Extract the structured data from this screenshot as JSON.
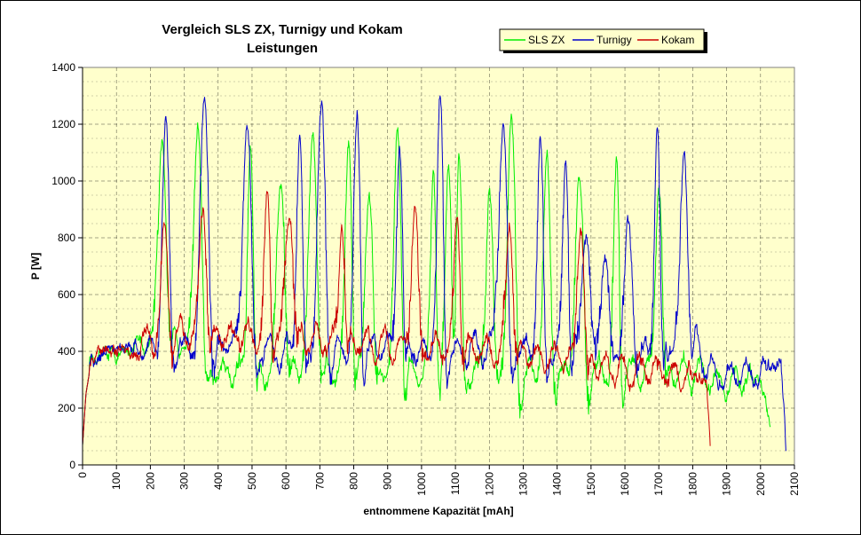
{
  "chart_data": {
    "type": "line",
    "title": "Vergleich SLS ZX, Turnigy und Kokam",
    "subtitle": "Leistungen",
    "xlabel": "entnommene Kapazität [mAh]",
    "ylabel": "P [W]",
    "xlim": [
      0,
      2100
    ],
    "ylim": [
      0,
      1400
    ],
    "xticks": [
      0,
      100,
      200,
      300,
      400,
      500,
      600,
      700,
      800,
      900,
      1000,
      1100,
      1200,
      1300,
      1400,
      1500,
      1600,
      1700,
      1800,
      1900,
      2000,
      2100
    ],
    "yticks": [
      0,
      200,
      400,
      600,
      800,
      1000,
      1200,
      1400
    ],
    "grid": true,
    "plot_background": "#ffffcc",
    "legend_position": "top-right",
    "series": [
      {
        "name": "SLS ZX",
        "color": "#00ee00",
        "base": [
          [
            0,
            70
          ],
          [
            10,
            250
          ],
          [
            25,
            360
          ],
          [
            60,
            400
          ],
          [
            100,
            380
          ],
          [
            150,
            410
          ],
          [
            190,
            440
          ],
          [
            260,
            450
          ],
          [
            400,
            320
          ],
          [
            600,
            340
          ],
          [
            800,
            340
          ],
          [
            1000,
            330
          ],
          [
            1200,
            320
          ],
          [
            1400,
            320
          ],
          [
            1600,
            330
          ],
          [
            1780,
            330
          ],
          [
            1850,
            300
          ],
          [
            1900,
            280
          ],
          [
            1950,
            300
          ],
          [
            2000,
            290
          ],
          [
            2020,
            200
          ],
          [
            2030,
            130
          ]
        ],
        "peaks": [
          [
            235,
            1190
          ],
          [
            340,
            1230
          ],
          [
            495,
            1130
          ],
          [
            585,
            1030
          ],
          [
            680,
            1160
          ],
          [
            785,
            1170
          ],
          [
            845,
            990
          ],
          [
            930,
            1170
          ],
          [
            1035,
            1050
          ],
          [
            1080,
            1020
          ],
          [
            1110,
            1080
          ],
          [
            1200,
            1000
          ],
          [
            1265,
            1180
          ],
          [
            1370,
            1050
          ],
          [
            1465,
            1000
          ],
          [
            1575,
            1020
          ],
          [
            1700,
            1020
          ]
        ]
      },
      {
        "name": "Turnigy",
        "color": "#0000cc",
        "base": [
          [
            0,
            70
          ],
          [
            10,
            250
          ],
          [
            25,
            360
          ],
          [
            60,
            390
          ],
          [
            120,
            400
          ],
          [
            200,
            410
          ],
          [
            300,
            420
          ],
          [
            500,
            400
          ],
          [
            700,
            400
          ],
          [
            900,
            410
          ],
          [
            1100,
            400
          ],
          [
            1300,
            400
          ],
          [
            1500,
            400
          ],
          [
            1700,
            400
          ],
          [
            1790,
            470
          ],
          [
            1820,
            400
          ],
          [
            1850,
            330
          ],
          [
            1900,
            300
          ],
          [
            1950,
            320
          ],
          [
            2000,
            330
          ],
          [
            2060,
            350
          ],
          [
            2070,
            200
          ],
          [
            2075,
            70
          ]
        ],
        "peaks": [
          [
            245,
            1180
          ],
          [
            360,
            1270
          ],
          [
            485,
            1220
          ],
          [
            640,
            1140
          ],
          [
            705,
            1230
          ],
          [
            810,
            1210
          ],
          [
            935,
            1160
          ],
          [
            1055,
            1260
          ],
          [
            1240,
            1210
          ],
          [
            1350,
            1130
          ],
          [
            1425,
            1110
          ],
          [
            1485,
            830
          ],
          [
            1540,
            740
          ],
          [
            1610,
            820
          ],
          [
            1695,
            1190
          ],
          [
            1775,
            1120
          ]
        ]
      },
      {
        "name": "Kokam",
        "color": "#cc0000",
        "base": [
          [
            0,
            70
          ],
          [
            10,
            250
          ],
          [
            25,
            360
          ],
          [
            60,
            410
          ],
          [
            100,
            390
          ],
          [
            200,
            440
          ],
          [
            300,
            460
          ],
          [
            500,
            450
          ],
          [
            700,
            440
          ],
          [
            900,
            420
          ],
          [
            1100,
            420
          ],
          [
            1300,
            400
          ],
          [
            1500,
            360
          ],
          [
            1700,
            330
          ],
          [
            1800,
            300
          ],
          [
            1840,
            290
          ],
          [
            1848,
            150
          ],
          [
            1852,
            65
          ]
        ],
        "peaks": [
          [
            242,
            850
          ],
          [
            355,
            930
          ],
          [
            545,
            940
          ],
          [
            610,
            900
          ],
          [
            765,
            890
          ],
          [
            980,
            900
          ],
          [
            1105,
            880
          ],
          [
            1260,
            880
          ],
          [
            1470,
            880
          ]
        ]
      }
    ]
  }
}
